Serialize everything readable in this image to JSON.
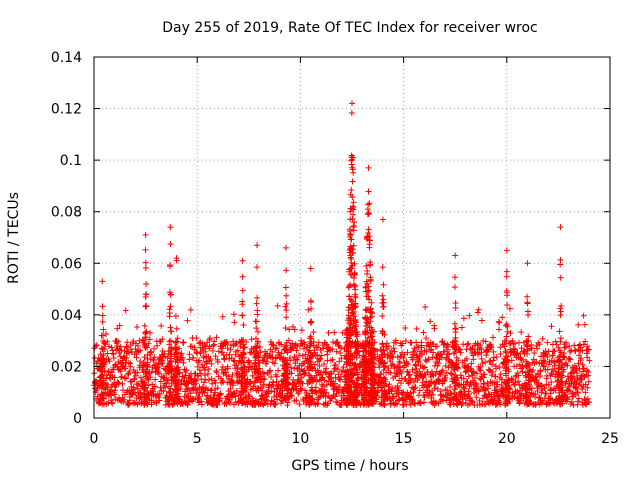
{
  "chart_data": {
    "type": "scatter",
    "title": "Day 255 of 2019, Rate Of TEC Index for receiver wroc",
    "xlabel": "GPS time / hours",
    "ylabel": "ROTI / TECUs",
    "xlim": [
      0,
      25
    ],
    "ylim": [
      0,
      0.14
    ],
    "x_ticks": [
      0,
      5,
      10,
      15,
      20,
      25
    ],
    "y_ticks": [
      0,
      0.02,
      0.04,
      0.06,
      0.08,
      0.1,
      0.12,
      0.14
    ],
    "x_tick_labels": [
      "0",
      "5",
      "10",
      "15",
      "20",
      "25"
    ],
    "y_tick_labels": [
      "0",
      "0.02",
      "0.04",
      "0.06",
      "0.08",
      "0.1",
      "0.12",
      "0.14"
    ],
    "grid": true,
    "marker": "+",
    "color": "#ff0000",
    "series": [
      {
        "name": "ROTI",
        "x_range": [
          0,
          24
        ],
        "baseline_range": [
          0.005,
          0.03
        ],
        "spikes": [
          {
            "x": 0.4,
            "y": 0.053
          },
          {
            "x": 2.5,
            "y": 0.071
          },
          {
            "x": 3.7,
            "y": 0.074
          },
          {
            "x": 4.0,
            "y": 0.062
          },
          {
            "x": 7.2,
            "y": 0.061
          },
          {
            "x": 7.9,
            "y": 0.067
          },
          {
            "x": 9.3,
            "y": 0.066
          },
          {
            "x": 10.5,
            "y": 0.058
          },
          {
            "x": 12.5,
            "y": 0.122
          },
          {
            "x": 13.3,
            "y": 0.097
          },
          {
            "x": 14.0,
            "y": 0.077
          },
          {
            "x": 17.5,
            "y": 0.063
          },
          {
            "x": 20.0,
            "y": 0.065
          },
          {
            "x": 21.0,
            "y": 0.06
          },
          {
            "x": 22.6,
            "y": 0.074
          }
        ]
      }
    ]
  }
}
